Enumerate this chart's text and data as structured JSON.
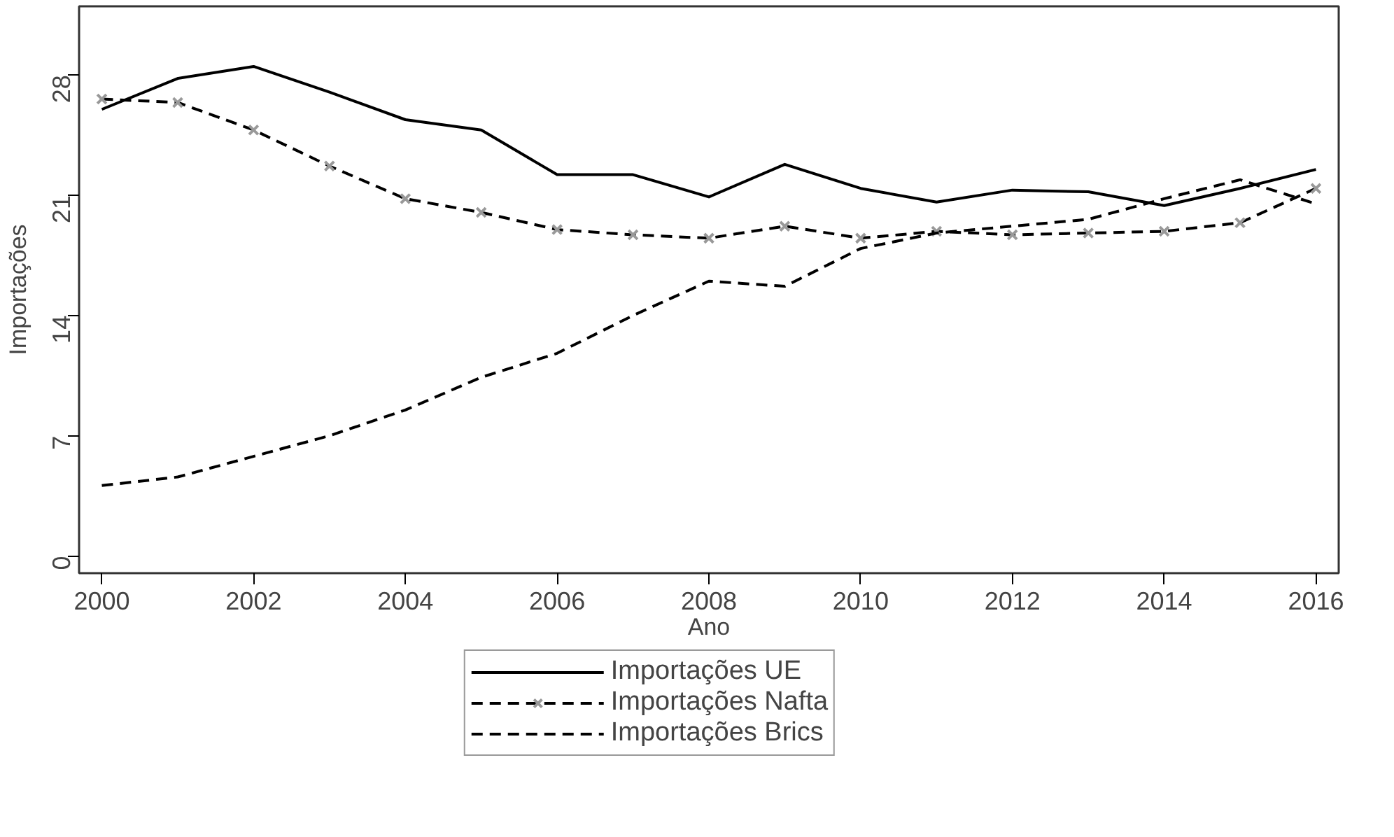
{
  "chart_data": {
    "type": "line",
    "xlabel": "Ano",
    "ylabel": "Importações",
    "x": [
      2000,
      2001,
      2002,
      2003,
      2004,
      2005,
      2006,
      2007,
      2008,
      2009,
      2010,
      2011,
      2012,
      2013,
      2014,
      2015,
      2016
    ],
    "series": [
      {
        "name": "Importações UE",
        "color": "#000000",
        "line_style": "solid",
        "marker": "none",
        "values": [
          26.0,
          27.8,
          28.5,
          27.0,
          25.4,
          24.8,
          22.2,
          22.2,
          20.9,
          22.8,
          21.4,
          20.6,
          21.3,
          21.2,
          20.4,
          21.4,
          22.5
        ]
      },
      {
        "name": "Importações Nafta",
        "color": "#000000",
        "line_style": "dashed",
        "marker": "cross",
        "values": [
          26.6,
          26.4,
          24.8,
          22.7,
          20.8,
          20.0,
          19.0,
          18.7,
          18.5,
          19.2,
          18.5,
          18.9,
          18.7,
          18.8,
          18.9,
          19.4,
          21.4
        ]
      },
      {
        "name": "Importações Brics",
        "color": "#000000",
        "line_style": "dashed",
        "marker": "none",
        "values": [
          4.1,
          4.6,
          5.8,
          7.0,
          8.5,
          10.4,
          11.8,
          14.0,
          16.0,
          15.7,
          17.9,
          18.8,
          19.2,
          19.6,
          20.8,
          21.9,
          20.5
        ]
      }
    ],
    "xlim": [
      1999.7,
      2016.3
    ],
    "ylim": [
      -1,
      32
    ],
    "xticks": [
      2000,
      2002,
      2004,
      2006,
      2008,
      2010,
      2012,
      2014,
      2016
    ],
    "yticks": [
      0,
      7,
      14,
      21,
      28
    ],
    "grid": false,
    "legend": "bottom"
  }
}
